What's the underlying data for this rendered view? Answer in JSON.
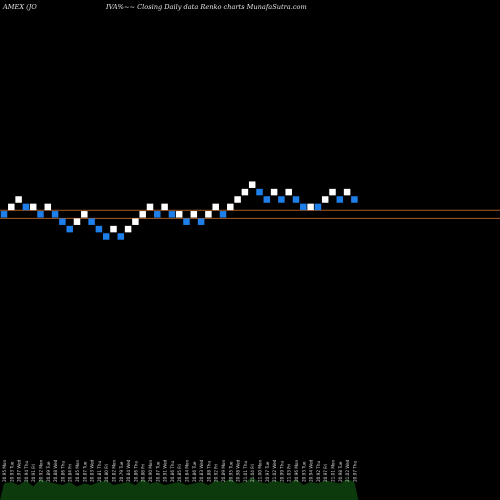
{
  "header": {
    "left": "AMEX  (JO",
    "middle": "IVA%~~  Closing Daily data  Renko  charts MunafaSutra.com"
  },
  "colors": {
    "background": "#000000",
    "up_brick": "#ffffff",
    "down_brick": "#1e7fe8",
    "reference_line": "#a65a24",
    "volume": "#0c3a0c",
    "volume_text": "#d9d9d9"
  },
  "chart_data": {
    "type": "renko",
    "bricks": [
      {
        "dir": "down",
        "level": 3
      },
      {
        "dir": "up",
        "level": 4
      },
      {
        "dir": "up",
        "level": 5
      },
      {
        "dir": "down",
        "level": 4
      },
      {
        "dir": "up",
        "level": 4
      },
      {
        "dir": "down",
        "level": 3
      },
      {
        "dir": "up",
        "level": 4
      },
      {
        "dir": "down",
        "level": 3
      },
      {
        "dir": "down",
        "level": 2
      },
      {
        "dir": "down",
        "level": 1
      },
      {
        "dir": "up",
        "level": 2
      },
      {
        "dir": "up",
        "level": 3
      },
      {
        "dir": "down",
        "level": 2
      },
      {
        "dir": "down",
        "level": 1
      },
      {
        "dir": "down",
        "level": 0
      },
      {
        "dir": "up",
        "level": 1
      },
      {
        "dir": "down",
        "level": 0
      },
      {
        "dir": "up",
        "level": 1
      },
      {
        "dir": "up",
        "level": 2
      },
      {
        "dir": "up",
        "level": 3
      },
      {
        "dir": "up",
        "level": 4
      },
      {
        "dir": "down",
        "level": 3
      },
      {
        "dir": "up",
        "level": 4
      },
      {
        "dir": "down",
        "level": 3
      },
      {
        "dir": "up",
        "level": 3
      },
      {
        "dir": "down",
        "level": 2
      },
      {
        "dir": "up",
        "level": 3
      },
      {
        "dir": "down",
        "level": 2
      },
      {
        "dir": "up",
        "level": 3
      },
      {
        "dir": "up",
        "level": 4
      },
      {
        "dir": "down",
        "level": 3
      },
      {
        "dir": "up",
        "level": 4
      },
      {
        "dir": "up",
        "level": 5
      },
      {
        "dir": "up",
        "level": 6
      },
      {
        "dir": "up",
        "level": 7
      },
      {
        "dir": "down",
        "level": 6
      },
      {
        "dir": "down",
        "level": 5
      },
      {
        "dir": "up",
        "level": 6
      },
      {
        "dir": "down",
        "level": 5
      },
      {
        "dir": "up",
        "level": 6
      },
      {
        "dir": "down",
        "level": 5
      },
      {
        "dir": "down",
        "level": 4
      },
      {
        "dir": "up",
        "level": 4
      },
      {
        "dir": "down",
        "level": 4
      },
      {
        "dir": "up",
        "level": 5
      },
      {
        "dir": "up",
        "level": 6
      },
      {
        "dir": "down",
        "level": 5
      },
      {
        "dir": "up",
        "level": 6
      },
      {
        "dir": "down",
        "level": 5
      }
    ],
    "reference_lines": [
      3.55,
      2.45
    ],
    "volume": [
      {
        "label": "20.95 Mon",
        "value": 0.55
      },
      {
        "label": "20.93 Tue",
        "value": 0.6
      },
      {
        "label": "20.97 Wed",
        "value": 0.5
      },
      {
        "label": "20.94 Thu",
        "value": 0.65
      },
      {
        "label": "20.91 Fri",
        "value": 0.45
      },
      {
        "label": "20.92 Mon",
        "value": 0.7
      },
      {
        "label": "20.89 Tue",
        "value": 0.6
      },
      {
        "label": "20.88 Wed",
        "value": 0.55
      },
      {
        "label": "20.86 Thu",
        "value": 0.5
      },
      {
        "label": "20.84 Fri",
        "value": 0.6
      },
      {
        "label": "20.85 Mon",
        "value": 0.45
      },
      {
        "label": "20.87 Tue",
        "value": 0.55
      },
      {
        "label": "20.83 Wed",
        "value": 0.5
      },
      {
        "label": "20.81 Thu",
        "value": 0.6
      },
      {
        "label": "20.80 Fri",
        "value": 0.65
      },
      {
        "label": "20.82 Mon",
        "value": 0.5
      },
      {
        "label": "20.79 Tue",
        "value": 0.55
      },
      {
        "label": "20.84 Wed",
        "value": 0.6
      },
      {
        "label": "20.86 Thu",
        "value": 0.5
      },
      {
        "label": "20.88 Fri",
        "value": 0.7
      },
      {
        "label": "20.90 Mon",
        "value": 0.55
      },
      {
        "label": "20.87 Tue",
        "value": 0.6
      },
      {
        "label": "20.91 Wed",
        "value": 0.5
      },
      {
        "label": "20.86 Thu",
        "value": 0.55
      },
      {
        "label": "20.85 Fri",
        "value": 0.6
      },
      {
        "label": "20.84 Mon",
        "value": 0.5
      },
      {
        "label": "20.86 Tue",
        "value": 0.55
      },
      {
        "label": "20.83 Wed",
        "value": 0.6
      },
      {
        "label": "20.88 Thu",
        "value": 0.5
      },
      {
        "label": "20.92 Fri",
        "value": 0.65
      },
      {
        "label": "20.89 Mon",
        "value": 0.6
      },
      {
        "label": "20.95 Tue",
        "value": 0.7
      },
      {
        "label": "20.98 Wed",
        "value": 0.55
      },
      {
        "label": "21.01 Thu",
        "value": 0.6
      },
      {
        "label": "21.04 Fri",
        "value": 0.75
      },
      {
        "label": "21.00 Mon",
        "value": 0.6
      },
      {
        "label": "20.97 Tue",
        "value": 0.55
      },
      {
        "label": "21.02 Wed",
        "value": 0.65
      },
      {
        "label": "20.99 Thu",
        "value": 0.6
      },
      {
        "label": "21.03 Fri",
        "value": 0.55
      },
      {
        "label": "20.96 Mon",
        "value": 0.7
      },
      {
        "label": "20.93 Tue",
        "value": 0.5
      },
      {
        "label": "20.94 Wed",
        "value": 0.6
      },
      {
        "label": "20.92 Thu",
        "value": 0.55
      },
      {
        "label": "20.97 Fri",
        "value": 0.65
      },
      {
        "label": "21.01 Mon",
        "value": 0.6
      },
      {
        "label": "20.98 Tue",
        "value": 0.55
      },
      {
        "label": "21.02 Wed",
        "value": 0.7
      },
      {
        "label": "20.97 Thu",
        "value": 0.6
      }
    ]
  }
}
